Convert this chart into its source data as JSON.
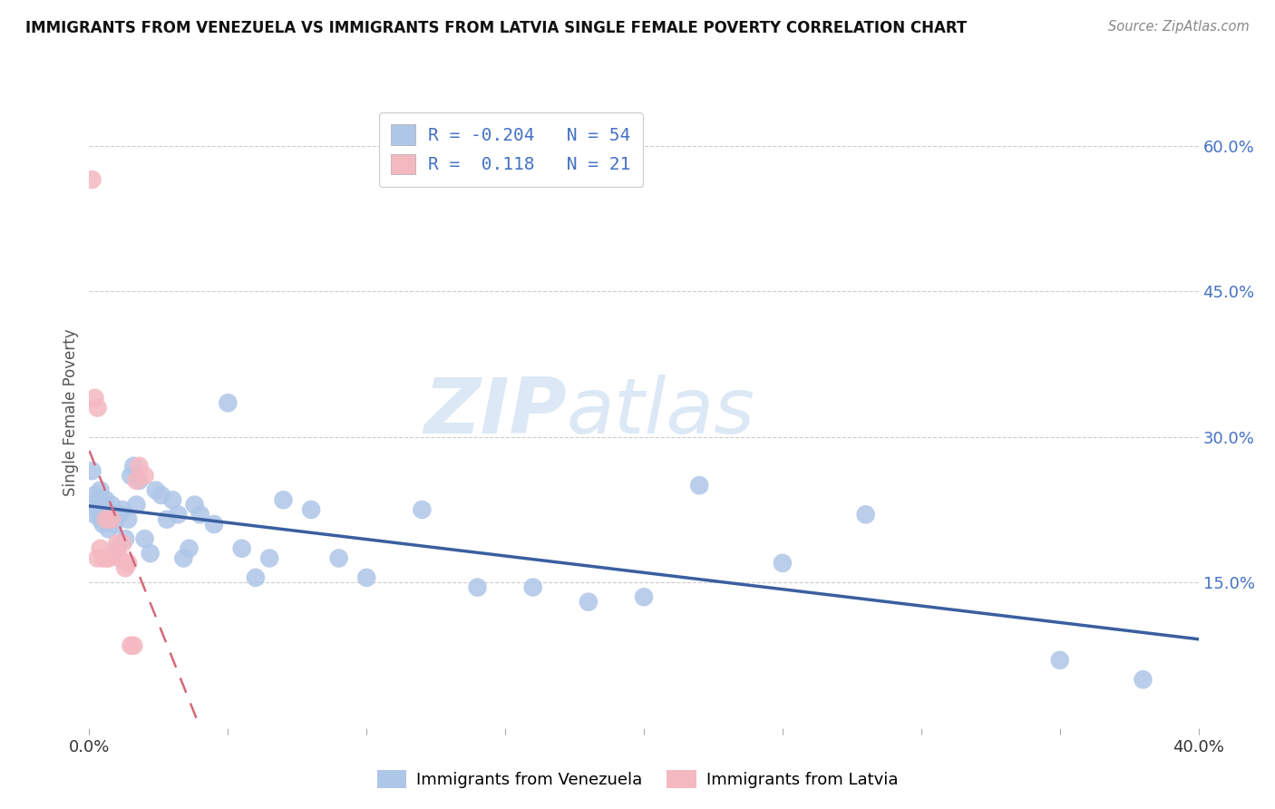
{
  "title": "IMMIGRANTS FROM VENEZUELA VS IMMIGRANTS FROM LATVIA SINGLE FEMALE POVERTY CORRELATION CHART",
  "source": "Source: ZipAtlas.com",
  "ylabel": "Single Female Poverty",
  "x_min": 0.0,
  "x_max": 0.4,
  "y_min": 0.0,
  "y_max": 0.65,
  "x_ticks": [
    0.0,
    0.05,
    0.1,
    0.15,
    0.2,
    0.25,
    0.3,
    0.35,
    0.4
  ],
  "y_ticks": [
    0.15,
    0.3,
    0.45,
    0.6
  ],
  "y_tick_labels": [
    "15.0%",
    "30.0%",
    "45.0%",
    "60.0%"
  ],
  "R_venezuela": -0.204,
  "N_venezuela": 54,
  "R_latvia": 0.118,
  "N_latvia": 21,
  "color_venezuela": "#aec6e8",
  "color_latvia": "#f4b8c1",
  "line_color_venezuela": "#3a5fa0",
  "line_color_latvia": "#d4687a",
  "legend_color_blue": "#4472c4",
  "watermark_color": "#dce8f5",
  "venezuela_x": [
    0.001,
    0.002,
    0.002,
    0.003,
    0.003,
    0.004,
    0.004,
    0.005,
    0.005,
    0.006,
    0.006,
    0.007,
    0.007,
    0.008,
    0.009,
    0.01,
    0.011,
    0.012,
    0.013,
    0.014,
    0.015,
    0.016,
    0.017,
    0.018,
    0.02,
    0.022,
    0.024,
    0.026,
    0.028,
    0.03,
    0.032,
    0.034,
    0.036,
    0.038,
    0.04,
    0.045,
    0.05,
    0.055,
    0.06,
    0.065,
    0.07,
    0.08,
    0.09,
    0.1,
    0.12,
    0.14,
    0.16,
    0.18,
    0.2,
    0.22,
    0.25,
    0.28,
    0.35,
    0.38
  ],
  "venezuela_y": [
    0.265,
    0.24,
    0.22,
    0.225,
    0.235,
    0.215,
    0.245,
    0.22,
    0.21,
    0.235,
    0.225,
    0.205,
    0.215,
    0.23,
    0.21,
    0.185,
    0.22,
    0.225,
    0.195,
    0.215,
    0.26,
    0.27,
    0.23,
    0.255,
    0.195,
    0.18,
    0.245,
    0.24,
    0.215,
    0.235,
    0.22,
    0.175,
    0.185,
    0.23,
    0.22,
    0.21,
    0.335,
    0.185,
    0.155,
    0.175,
    0.235,
    0.225,
    0.175,
    0.155,
    0.225,
    0.145,
    0.145,
    0.13,
    0.135,
    0.25,
    0.17,
    0.22,
    0.07,
    0.05
  ],
  "latvia_x": [
    0.001,
    0.002,
    0.003,
    0.003,
    0.004,
    0.005,
    0.006,
    0.006,
    0.007,
    0.008,
    0.009,
    0.01,
    0.011,
    0.012,
    0.013,
    0.014,
    0.015,
    0.016,
    0.017,
    0.018,
    0.02
  ],
  "latvia_y": [
    0.565,
    0.34,
    0.33,
    0.175,
    0.185,
    0.175,
    0.215,
    0.175,
    0.175,
    0.215,
    0.18,
    0.19,
    0.175,
    0.19,
    0.165,
    0.17,
    0.085,
    0.085,
    0.255,
    0.27,
    0.26
  ]
}
